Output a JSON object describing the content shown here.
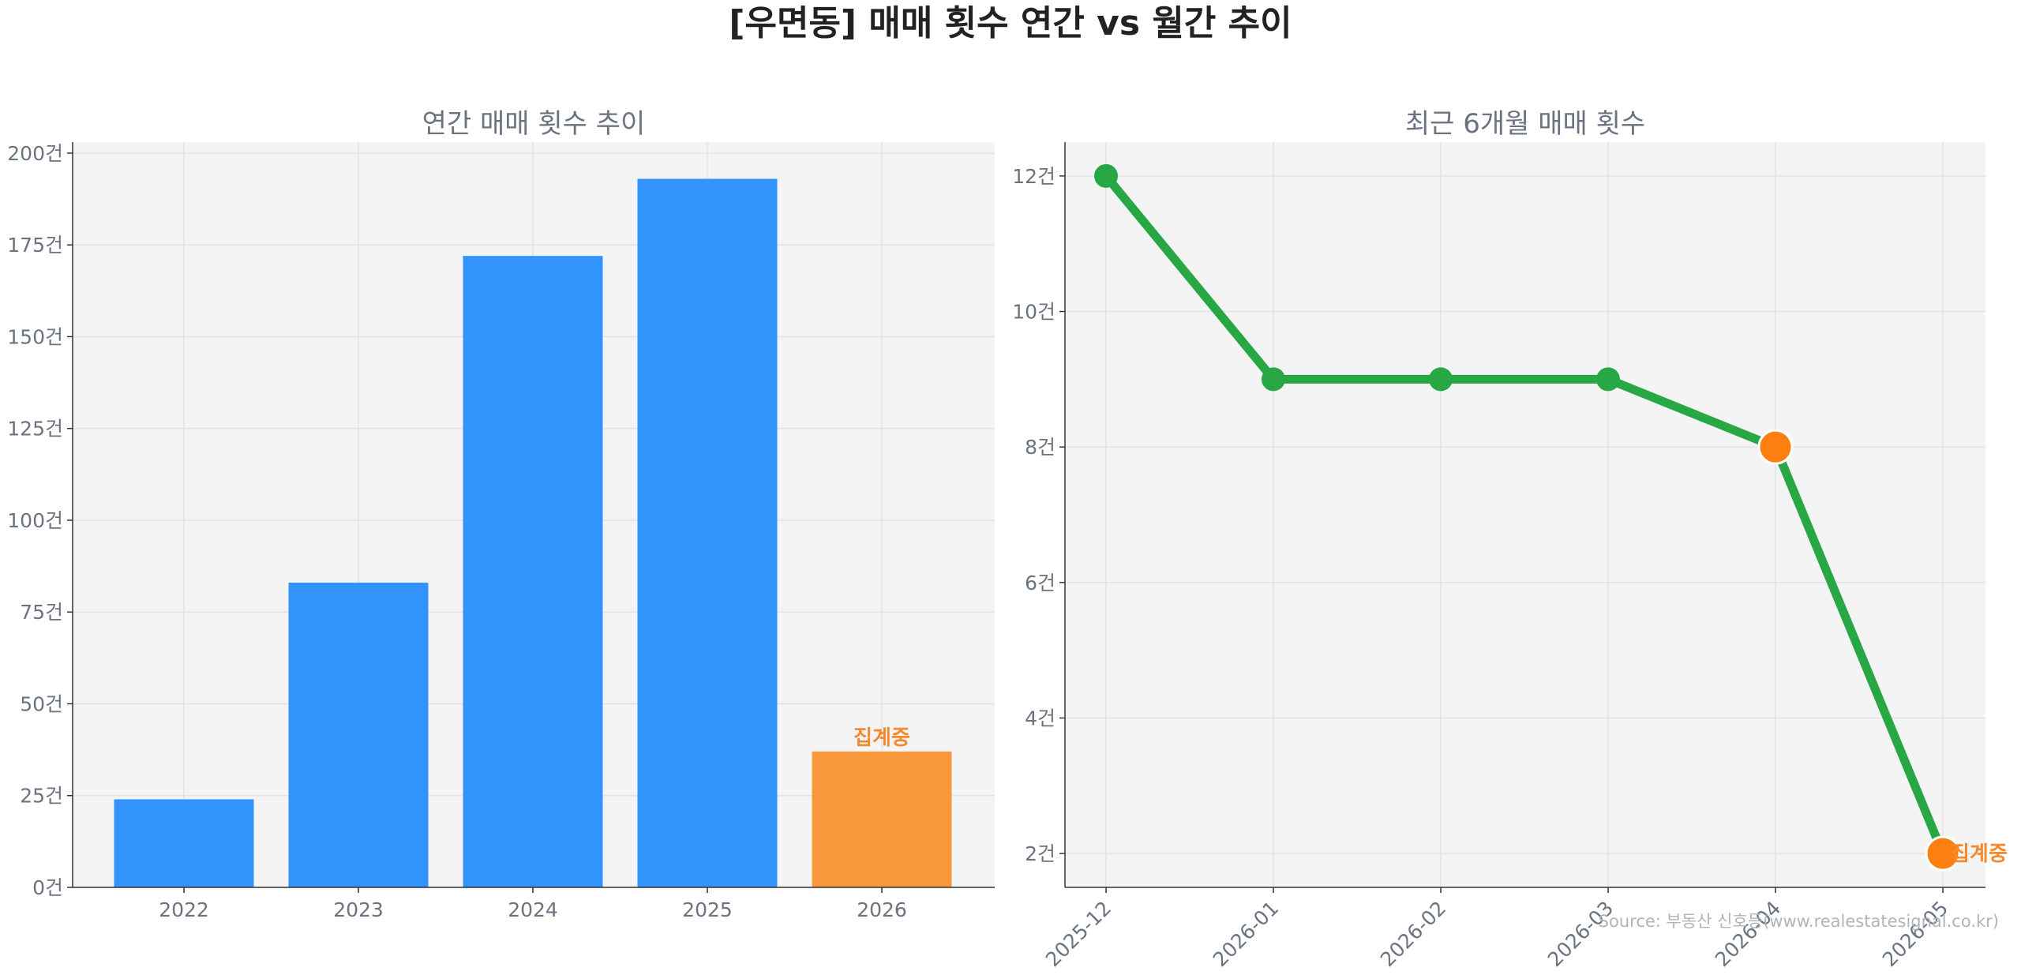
{
  "title": "[우면동] 매매 횟수 연간 vs 월간 추이",
  "source": "Source: 부동산 신호등(www.realestatesignal.co.kr)",
  "colors": {
    "bar": "#3293fb",
    "bar_highlight": "#fa983e",
    "line": "#28a745",
    "highlight_marker": "#fd7f0f",
    "annotation": "#f28a2e"
  },
  "chart_data": [
    {
      "type": "bar",
      "title": "연간 매매 횟수 추이",
      "categories": [
        "2022",
        "2023",
        "2024",
        "2025",
        "2026"
      ],
      "values": [
        24,
        83,
        172,
        193,
        37
      ],
      "highlight_index": 4,
      "annotation": {
        "index": 4,
        "text": "집계중"
      },
      "ylim": [
        0,
        203
      ],
      "yticks": [
        0,
        25,
        50,
        75,
        100,
        125,
        150,
        175,
        200
      ],
      "ytick_labels": [
        "0건",
        "25건",
        "50건",
        "75건",
        "100건",
        "125건",
        "150건",
        "175건",
        "200건"
      ],
      "grid": true
    },
    {
      "type": "line",
      "title": "최근 6개월 매매 횟수",
      "x": [
        "2025-12",
        "2026-01",
        "2026-02",
        "2026-03",
        "2026-04",
        "2026-05"
      ],
      "values": [
        12,
        9,
        9,
        9,
        8,
        2
      ],
      "highlight_indices": [
        4,
        5
      ],
      "annotation": {
        "index": 5,
        "text": "집계중"
      },
      "ylim": [
        1.5,
        12.5
      ],
      "yticks": [
        2,
        4,
        6,
        8,
        10,
        12
      ],
      "ytick_labels": [
        "2건",
        "4건",
        "6건",
        "8건",
        "10건",
        "12건"
      ],
      "grid": true
    }
  ]
}
